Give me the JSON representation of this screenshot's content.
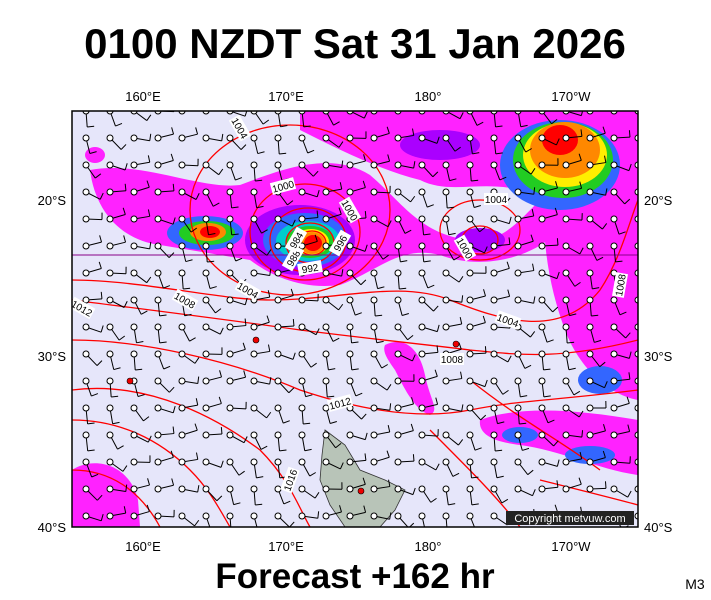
{
  "header": {
    "title": "0100 NZDT Sat 31 Jan 2026"
  },
  "map": {
    "lon_labels_top": [
      "160°E",
      "170°E",
      "180°",
      "170°W"
    ],
    "lon_labels_bottom": [
      "160°E",
      "170°E",
      "180°",
      "170°W"
    ],
    "lat_labels_left": [
      "20°S",
      "30°S",
      "40°S"
    ],
    "lat_labels_right": [
      "20°S",
      "30°S",
      "40°S"
    ],
    "isobar_labels": [
      "1004",
      "1000",
      "1000",
      "996",
      "992",
      "988",
      "984",
      "1004",
      "1000",
      "1008",
      "1004",
      "1008",
      "1012",
      "1004",
      "1008",
      "1012",
      "1016"
    ],
    "copyright": "Copyright metvuw.com"
  },
  "footer": {
    "forecast": "Forecast +162 hr",
    "code": "M3"
  }
}
